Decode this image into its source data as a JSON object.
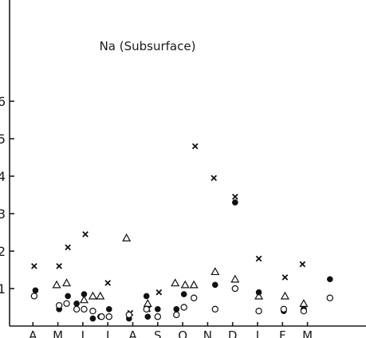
{
  "chart_data": {
    "type": "scatter",
    "title": "Na (Subsurface)",
    "xlabel": "",
    "ylabel": "",
    "ylim": [
      0,
      8.7
    ],
    "yticks": [
      {
        "value": 1,
        "label": "1"
      },
      {
        "value": 2,
        "label": "2"
      },
      {
        "value": 3,
        "label": "3"
      },
      {
        "value": 4,
        "label": "4"
      },
      {
        "value": 5,
        "label": "5"
      },
      {
        "value": 6,
        "label": "6"
      }
    ],
    "xlim": [
      0,
      14.2
    ],
    "months": [
      "A",
      "M",
      "J",
      "J",
      "A",
      "S",
      "O",
      "N",
      "D",
      "J",
      "F",
      "M"
    ],
    "grid": false,
    "legend": "none",
    "series": [
      {
        "marker": "cross",
        "points": [
          {
            "x": 1.05,
            "y": 1.6
          },
          {
            "x": 2.05,
            "y": 1.6
          },
          {
            "x": 2.4,
            "y": 2.1
          },
          {
            "x": 3.1,
            "y": 2.45
          },
          {
            "x": 4.0,
            "y": 1.15
          },
          {
            "x": 4.9,
            "y": 0.35
          },
          {
            "x": 5.6,
            "y": 0.45
          },
          {
            "x": 6.05,
            "y": 0.9
          },
          {
            "x": 7.5,
            "y": 4.8
          },
          {
            "x": 8.25,
            "y": 3.95
          },
          {
            "x": 9.1,
            "y": 3.45
          },
          {
            "x": 10.05,
            "y": 1.8
          },
          {
            "x": 11.1,
            "y": 1.3
          },
          {
            "x": 11.8,
            "y": 1.65
          },
          {
            "x": 11.85,
            "y": 0.5
          }
        ]
      },
      {
        "marker": "open-triangle",
        "points": [
          {
            "x": 1.95,
            "y": 1.1
          },
          {
            "x": 2.35,
            "y": 1.15
          },
          {
            "x": 3.05,
            "y": 0.7
          },
          {
            "x": 3.4,
            "y": 0.8
          },
          {
            "x": 3.7,
            "y": 0.8
          },
          {
            "x": 4.75,
            "y": 2.35
          },
          {
            "x": 5.6,
            "y": 0.6
          },
          {
            "x": 6.7,
            "y": 1.15
          },
          {
            "x": 7.1,
            "y": 1.1
          },
          {
            "x": 7.45,
            "y": 1.1
          },
          {
            "x": 8.3,
            "y": 1.45
          },
          {
            "x": 9.1,
            "y": 1.25
          },
          {
            "x": 10.05,
            "y": 0.8
          },
          {
            "x": 11.1,
            "y": 0.8
          },
          {
            "x": 11.85,
            "y": 0.6
          }
        ]
      },
      {
        "marker": "filled-circle",
        "points": [
          {
            "x": 1.1,
            "y": 0.95
          },
          {
            "x": 2.05,
            "y": 0.45
          },
          {
            "x": 2.4,
            "y": 0.8
          },
          {
            "x": 2.75,
            "y": 0.6
          },
          {
            "x": 3.05,
            "y": 0.85
          },
          {
            "x": 3.4,
            "y": 0.2
          },
          {
            "x": 3.7,
            "y": 0.25
          },
          {
            "x": 4.05,
            "y": 0.45
          },
          {
            "x": 4.85,
            "y": 0.2
          },
          {
            "x": 5.55,
            "y": 0.8
          },
          {
            "x": 5.6,
            "y": 0.25
          },
          {
            "x": 6.0,
            "y": 0.45
          },
          {
            "x": 6.75,
            "y": 0.45
          },
          {
            "x": 7.05,
            "y": 0.85
          },
          {
            "x": 8.3,
            "y": 1.1
          },
          {
            "x": 9.1,
            "y": 3.3
          },
          {
            "x": 10.05,
            "y": 0.9
          },
          {
            "x": 11.05,
            "y": 0.4
          },
          {
            "x": 11.85,
            "y": 0.45
          },
          {
            "x": 12.9,
            "y": 1.25
          }
        ]
      },
      {
        "marker": "open-circle",
        "points": [
          {
            "x": 1.05,
            "y": 0.8
          },
          {
            "x": 2.05,
            "y": 0.55
          },
          {
            "x": 2.35,
            "y": 0.6
          },
          {
            "x": 2.75,
            "y": 0.45
          },
          {
            "x": 3.05,
            "y": 0.45
          },
          {
            "x": 3.4,
            "y": 0.4
          },
          {
            "x": 3.75,
            "y": 0.25
          },
          {
            "x": 4.05,
            "y": 0.25
          },
          {
            "x": 4.85,
            "y": 0.3
          },
          {
            "x": 5.55,
            "y": 0.45
          },
          {
            "x": 6.0,
            "y": 0.25
          },
          {
            "x": 6.75,
            "y": 0.3
          },
          {
            "x": 7.05,
            "y": 0.5
          },
          {
            "x": 7.45,
            "y": 0.75
          },
          {
            "x": 8.3,
            "y": 0.45
          },
          {
            "x": 9.1,
            "y": 1.0
          },
          {
            "x": 10.05,
            "y": 0.4
          },
          {
            "x": 11.05,
            "y": 0.45
          },
          {
            "x": 11.85,
            "y": 0.4
          },
          {
            "x": 12.9,
            "y": 0.75
          }
        ]
      }
    ]
  }
}
